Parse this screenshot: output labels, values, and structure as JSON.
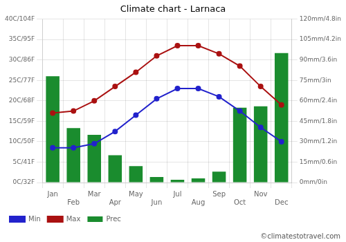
{
  "chart_data": {
    "type": "bar",
    "title": "Climate chart - Larnaca",
    "categories": [
      "Jan",
      "Feb",
      "Mar",
      "Apr",
      "May",
      "Jun",
      "Jul",
      "Aug",
      "Sep",
      "Oct",
      "Nov",
      "Dec"
    ],
    "series": [
      {
        "name": "Prec",
        "type": "bar",
        "color": "#1a8c2e",
        "axis": "y2",
        "values": [
          78,
          40,
          35,
          20,
          12,
          4,
          2,
          3,
          8,
          55,
          56,
          95
        ]
      },
      {
        "name": "Min",
        "type": "line",
        "color": "#2222cc",
        "marker": "circle",
        "values": [
          8.5,
          8.5,
          9.5,
          12.5,
          16.5,
          20.5,
          23,
          23,
          21,
          17.5,
          13.5,
          10
        ]
      },
      {
        "name": "Max",
        "type": "line",
        "color": "#aa1111",
        "marker": "circle",
        "values": [
          17,
          17.5,
          20,
          23.5,
          27,
          31,
          33.5,
          33.5,
          31.5,
          28.5,
          23.5,
          19
        ]
      }
    ],
    "ylim": [
      0,
      40
    ],
    "yticks": [
      {
        "value": 0,
        "label": "0C/32F"
      },
      {
        "value": 5,
        "label": "5C/41F"
      },
      {
        "value": 10,
        "label": "10C/50F"
      },
      {
        "value": 15,
        "label": "15C/59F"
      },
      {
        "value": 20,
        "label": "20C/68F"
      },
      {
        "value": 25,
        "label": "25C/77F"
      },
      {
        "value": 30,
        "label": "30C/86F"
      },
      {
        "value": 35,
        "label": "35C/95F"
      },
      {
        "value": 40,
        "label": "40C/104F"
      }
    ],
    "y2lim": [
      0,
      120
    ],
    "y2ticks": [
      {
        "value": 0,
        "label": "0mm/0in"
      },
      {
        "value": 15,
        "label": "15mm/0.6in"
      },
      {
        "value": 30,
        "label": "30mm/1.2in"
      },
      {
        "value": 45,
        "label": "45mm/1.8in"
      },
      {
        "value": 60,
        "label": "60mm/2.4in"
      },
      {
        "value": 75,
        "label": "75mm/3in"
      },
      {
        "value": 90,
        "label": "90mm/3.6in"
      },
      {
        "value": 105,
        "label": "105mm/4.2in"
      },
      {
        "value": 120,
        "label": "120mm/4.8in"
      }
    ],
    "grid": true,
    "legend": "bottom",
    "annotations": [
      {
        "text": "©climatestotravel.com"
      }
    ]
  }
}
